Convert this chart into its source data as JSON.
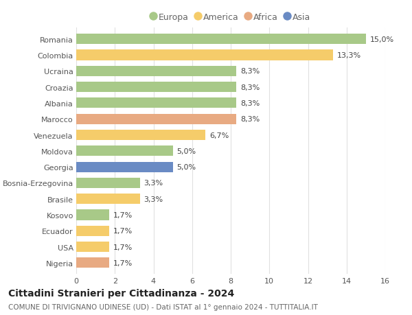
{
  "countries": [
    "Romania",
    "Colombia",
    "Ucraina",
    "Croazia",
    "Albania",
    "Marocco",
    "Venezuela",
    "Moldova",
    "Georgia",
    "Bosnia-Erzegovina",
    "Brasile",
    "Kosovo",
    "Ecuador",
    "USA",
    "Nigeria"
  ],
  "values": [
    15.0,
    13.3,
    8.3,
    8.3,
    8.3,
    8.3,
    6.7,
    5.0,
    5.0,
    3.3,
    3.3,
    1.7,
    1.7,
    1.7,
    1.7
  ],
  "labels": [
    "15,0%",
    "13,3%",
    "8,3%",
    "8,3%",
    "8,3%",
    "8,3%",
    "6,7%",
    "5,0%",
    "5,0%",
    "3,3%",
    "3,3%",
    "1,7%",
    "1,7%",
    "1,7%",
    "1,7%"
  ],
  "continents": [
    "Europa",
    "America",
    "Europa",
    "Europa",
    "Europa",
    "Africa",
    "America",
    "Europa",
    "Asia",
    "Europa",
    "America",
    "Europa",
    "America",
    "America",
    "Africa"
  ],
  "continent_colors": {
    "Europa": "#a8c988",
    "America": "#f5cc6a",
    "Africa": "#e8aa82",
    "Asia": "#6a8bc4"
  },
  "legend_order": [
    "Europa",
    "America",
    "Africa",
    "Asia"
  ],
  "title": "Cittadini Stranieri per Cittadinanza - 2024",
  "subtitle": "COMUNE DI TRIVIGNANO UDINESE (UD) - Dati ISTAT al 1° gennaio 2024 - TUTTITALIA.IT",
  "xlim": [
    0,
    16
  ],
  "xticks": [
    0,
    2,
    4,
    6,
    8,
    10,
    12,
    14,
    16
  ],
  "background_color": "#ffffff",
  "grid_color": "#e0e0e0",
  "bar_height": 0.65,
  "label_fontsize": 8,
  "title_fontsize": 10,
  "subtitle_fontsize": 7.5,
  "tick_fontsize": 8,
  "legend_fontsize": 9
}
